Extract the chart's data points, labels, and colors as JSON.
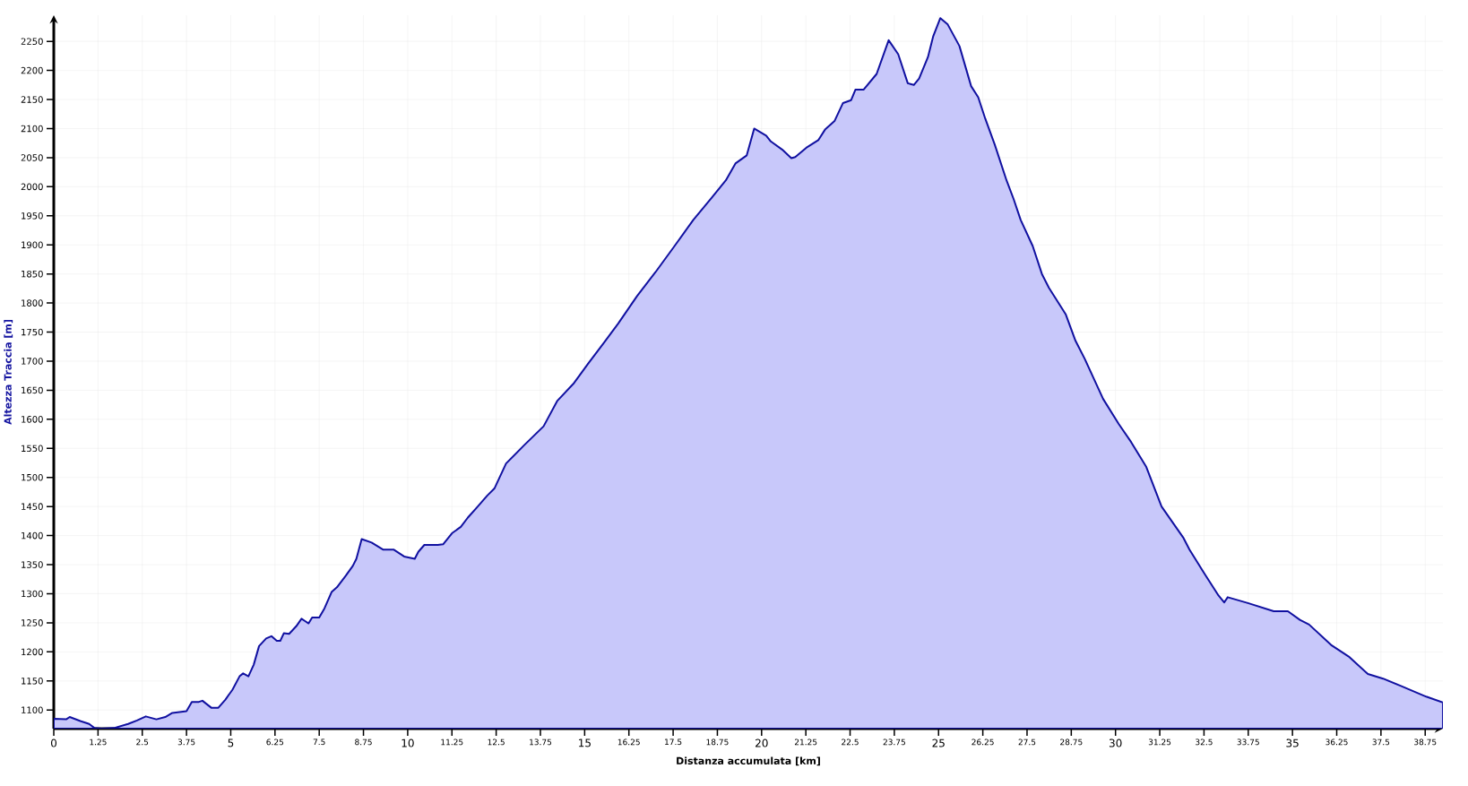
{
  "chart_data": {
    "type": "area",
    "xlabel": "Distanza accumulata [km]",
    "ylabel": "Altezza Traccia [m]",
    "xlim": [
      0,
      39.25
    ],
    "ylim": [
      1068,
      2295
    ],
    "xticks": [
      0,
      1.25,
      2.5,
      3.75,
      5,
      6.25,
      7.5,
      8.75,
      10,
      11.25,
      12.5,
      13.75,
      15,
      16.25,
      17.5,
      18.75,
      20,
      21.25,
      22.5,
      23.75,
      25,
      26.25,
      27.5,
      28.75,
      30,
      31.25,
      32.5,
      33.75,
      35,
      36.25,
      37.5,
      38.75
    ],
    "yticks": [
      1100,
      1150,
      1200,
      1250,
      1300,
      1350,
      1400,
      1450,
      1500,
      1550,
      1600,
      1650,
      1700,
      1750,
      1800,
      1850,
      1900,
      1950,
      2000,
      2050,
      2100,
      2150,
      2200,
      2250
    ],
    "grid": true,
    "series": [
      {
        "color": "#c8c8fa",
        "x": [
          0,
          0.35,
          0.45,
          0.75,
          1.0,
          1.15,
          1.35,
          1.7,
          2.1,
          2.35,
          2.6,
          2.9,
          3.15,
          3.35,
          3.75,
          3.9,
          4.1,
          4.2,
          4.45,
          4.65,
          4.85,
          5.05,
          5.25,
          5.35,
          5.5,
          5.65,
          5.8,
          6.0,
          6.15,
          6.3,
          6.4,
          6.5,
          6.65,
          6.85,
          7.0,
          7.1,
          7.2,
          7.3,
          7.5,
          7.65,
          7.85,
          8.0,
          8.25,
          8.45,
          8.55,
          8.7,
          8.98,
          9.3,
          9.6,
          9.9,
          10.2,
          10.3,
          10.47,
          10.85,
          11.0,
          11.25,
          11.5,
          11.7,
          11.98,
          12.25,
          12.45,
          12.78,
          13.3,
          13.84,
          14.23,
          14.68,
          15.1,
          15.56,
          15.95,
          16.48,
          17.0,
          17.54,
          18.07,
          18.6,
          18.99,
          19.26,
          19.58,
          19.79,
          20.13,
          20.26,
          20.58,
          20.84,
          20.95,
          21.26,
          21.6,
          21.8,
          22.06,
          22.3,
          22.53,
          22.65,
          22.88,
          23.25,
          23.59,
          23.86,
          24.13,
          24.3,
          24.45,
          24.7,
          24.85,
          25.05,
          25.26,
          25.59,
          25.92,
          26.12,
          26.32,
          26.59,
          26.92,
          27.12,
          27.32,
          27.66,
          27.92,
          28.12,
          28.59,
          28.87,
          29.13,
          29.65,
          30.09,
          30.44,
          30.87,
          31.3,
          31.91,
          32.09,
          32.52,
          32.91,
          33.07,
          33.17,
          33.74,
          34.47,
          34.87,
          35.21,
          35.47,
          36.09,
          36.61,
          37.13,
          37.56,
          38.08,
          38.78,
          39.25
        ],
        "values": [
          1085,
          1084,
          1088,
          1081,
          1076,
          1069,
          1068,
          1069,
          1076,
          1082,
          1089,
          1084,
          1088,
          1095,
          1098,
          1114,
          1114,
          1116,
          1104,
          1104,
          1118,
          1135,
          1158,
          1163,
          1158,
          1178,
          1210,
          1223,
          1227,
          1219,
          1219,
          1232,
          1231,
          1244,
          1257,
          1253,
          1249,
          1259,
          1259,
          1275,
          1303,
          1311,
          1331,
          1348,
          1360,
          1394,
          1388,
          1376,
          1376,
          1364,
          1360,
          1372,
          1384,
          1384,
          1385,
          1404,
          1415,
          1431,
          1450,
          1469,
          1481,
          1524,
          1556,
          1588,
          1632,
          1661,
          1696,
          1733,
          1765,
          1812,
          1853,
          1898,
          1943,
          1982,
          2011,
          2040,
          2054,
          2100,
          2088,
          2078,
          2064,
          2049,
          2051,
          2067,
          2080,
          2099,
          2113,
          2144,
          2149,
          2167,
          2167,
          2194,
          2252,
          2228,
          2178,
          2175,
          2186,
          2223,
          2259,
          2290,
          2279,
          2242,
          2173,
          2154,
          2117,
          2072,
          2011,
          1979,
          1943,
          1898,
          1850,
          1826,
          1781,
          1735,
          1704,
          1635,
          1592,
          1561,
          1518,
          1450,
          1397,
          1376,
          1334,
          1297,
          1285,
          1294,
          1284,
          1270,
          1270,
          1255,
          1247,
          1212,
          1191,
          1162,
          1154,
          1141,
          1123,
          1113
        ]
      }
    ]
  }
}
